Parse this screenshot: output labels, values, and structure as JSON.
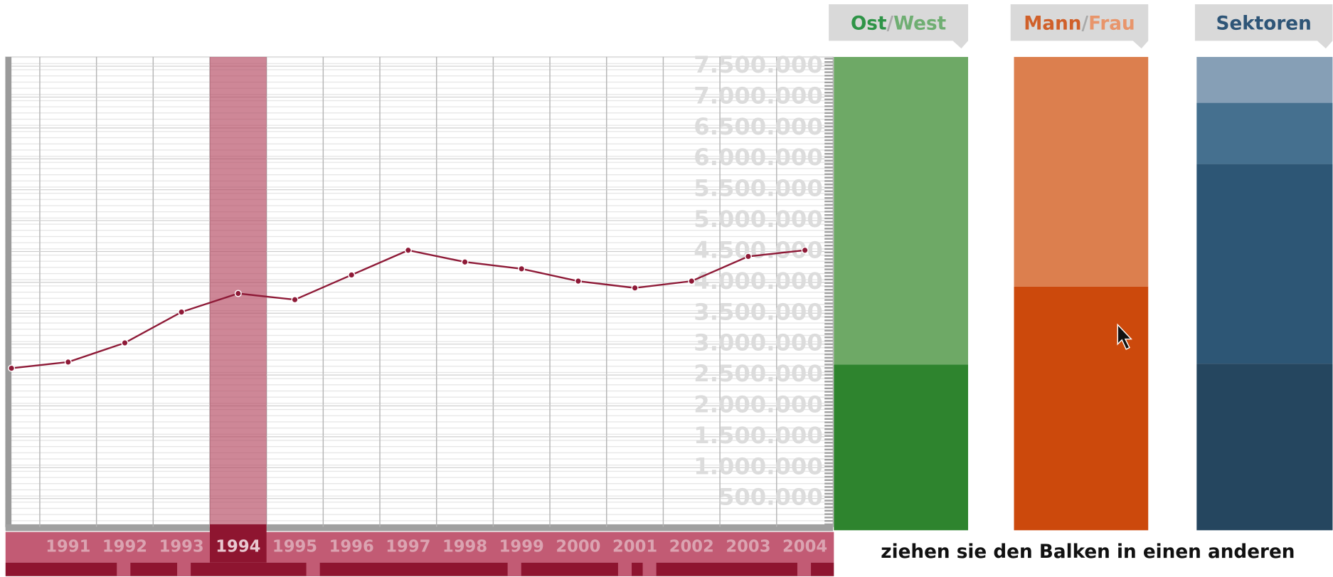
{
  "chart_data": {
    "type": "line",
    "color": "#8e1a37",
    "categories": [
      null,
      "1991",
      "1992",
      "1993",
      "1994",
      "1995",
      "1996",
      "1997",
      "1998",
      "1999",
      "2000",
      "2001",
      "2002",
      "2003",
      "2004"
    ],
    "values": [
      2610000,
      2710000,
      3020000,
      3520000,
      3820000,
      3720000,
      4120000,
      4520000,
      4330000,
      4220000,
      4020000,
      3910000,
      4020000,
      4420000,
      4520000
    ],
    "selected_category": "1994",
    "ylim": [
      0,
      7650000
    ],
    "yticks": [
      {
        "value": 500000,
        "label": "500.000"
      },
      {
        "value": 1000000,
        "label": "1.000.000"
      },
      {
        "value": 1500000,
        "label": "1.500.000"
      },
      {
        "value": 2000000,
        "label": "2.000.000"
      },
      {
        "value": 2500000,
        "label": "2.500.000"
      },
      {
        "value": 3000000,
        "label": "3.000.000"
      },
      {
        "value": 3500000,
        "label": "3.500.000"
      },
      {
        "value": 4000000,
        "label": "4.000.000"
      },
      {
        "value": 4500000,
        "label": "4.500.000"
      },
      {
        "value": 5000000,
        "label": "5.000.000"
      },
      {
        "value": 5500000,
        "label": "5.500.000"
      },
      {
        "value": 6000000,
        "label": "6.000.000"
      },
      {
        "value": 6500000,
        "label": "6.500.000"
      },
      {
        "value": 7000000,
        "label": "7.000.000"
      },
      {
        "value": 7500000,
        "label": "7.500.000"
      }
    ],
    "grid": true
  },
  "panels": [
    {
      "title_parts": [
        "Ost",
        "/",
        "West"
      ],
      "title_colors": [
        "#2e9447",
        "#aaaaaa",
        "#6fae72"
      ],
      "segments": [
        {
          "value": 35,
          "color": "#2e842e"
        },
        {
          "value": 65,
          "color": "#6ea966"
        }
      ]
    },
    {
      "title_parts": [
        "Mann",
        "/",
        "Frau"
      ],
      "title_colors": [
        "#d0602a",
        "#aaaaaa",
        "#e8956b"
      ],
      "segments": [
        {
          "value": 51.5,
          "color": "#cc490c"
        },
        {
          "value": 48.5,
          "color": "#dc7f4e"
        }
      ]
    },
    {
      "title_parts": [
        "Sektoren"
      ],
      "title_colors": [
        "#2e5577"
      ],
      "segments": [
        {
          "value": 35.2,
          "color": "#25465f"
        },
        {
          "value": 42.2,
          "color": "#2d5675"
        },
        {
          "value": 12.9,
          "color": "#45708f"
        },
        {
          "value": 9.7,
          "color": "#869fb6"
        }
      ]
    }
  ],
  "hint": "ziehen sie den Balken in einen anderen"
}
